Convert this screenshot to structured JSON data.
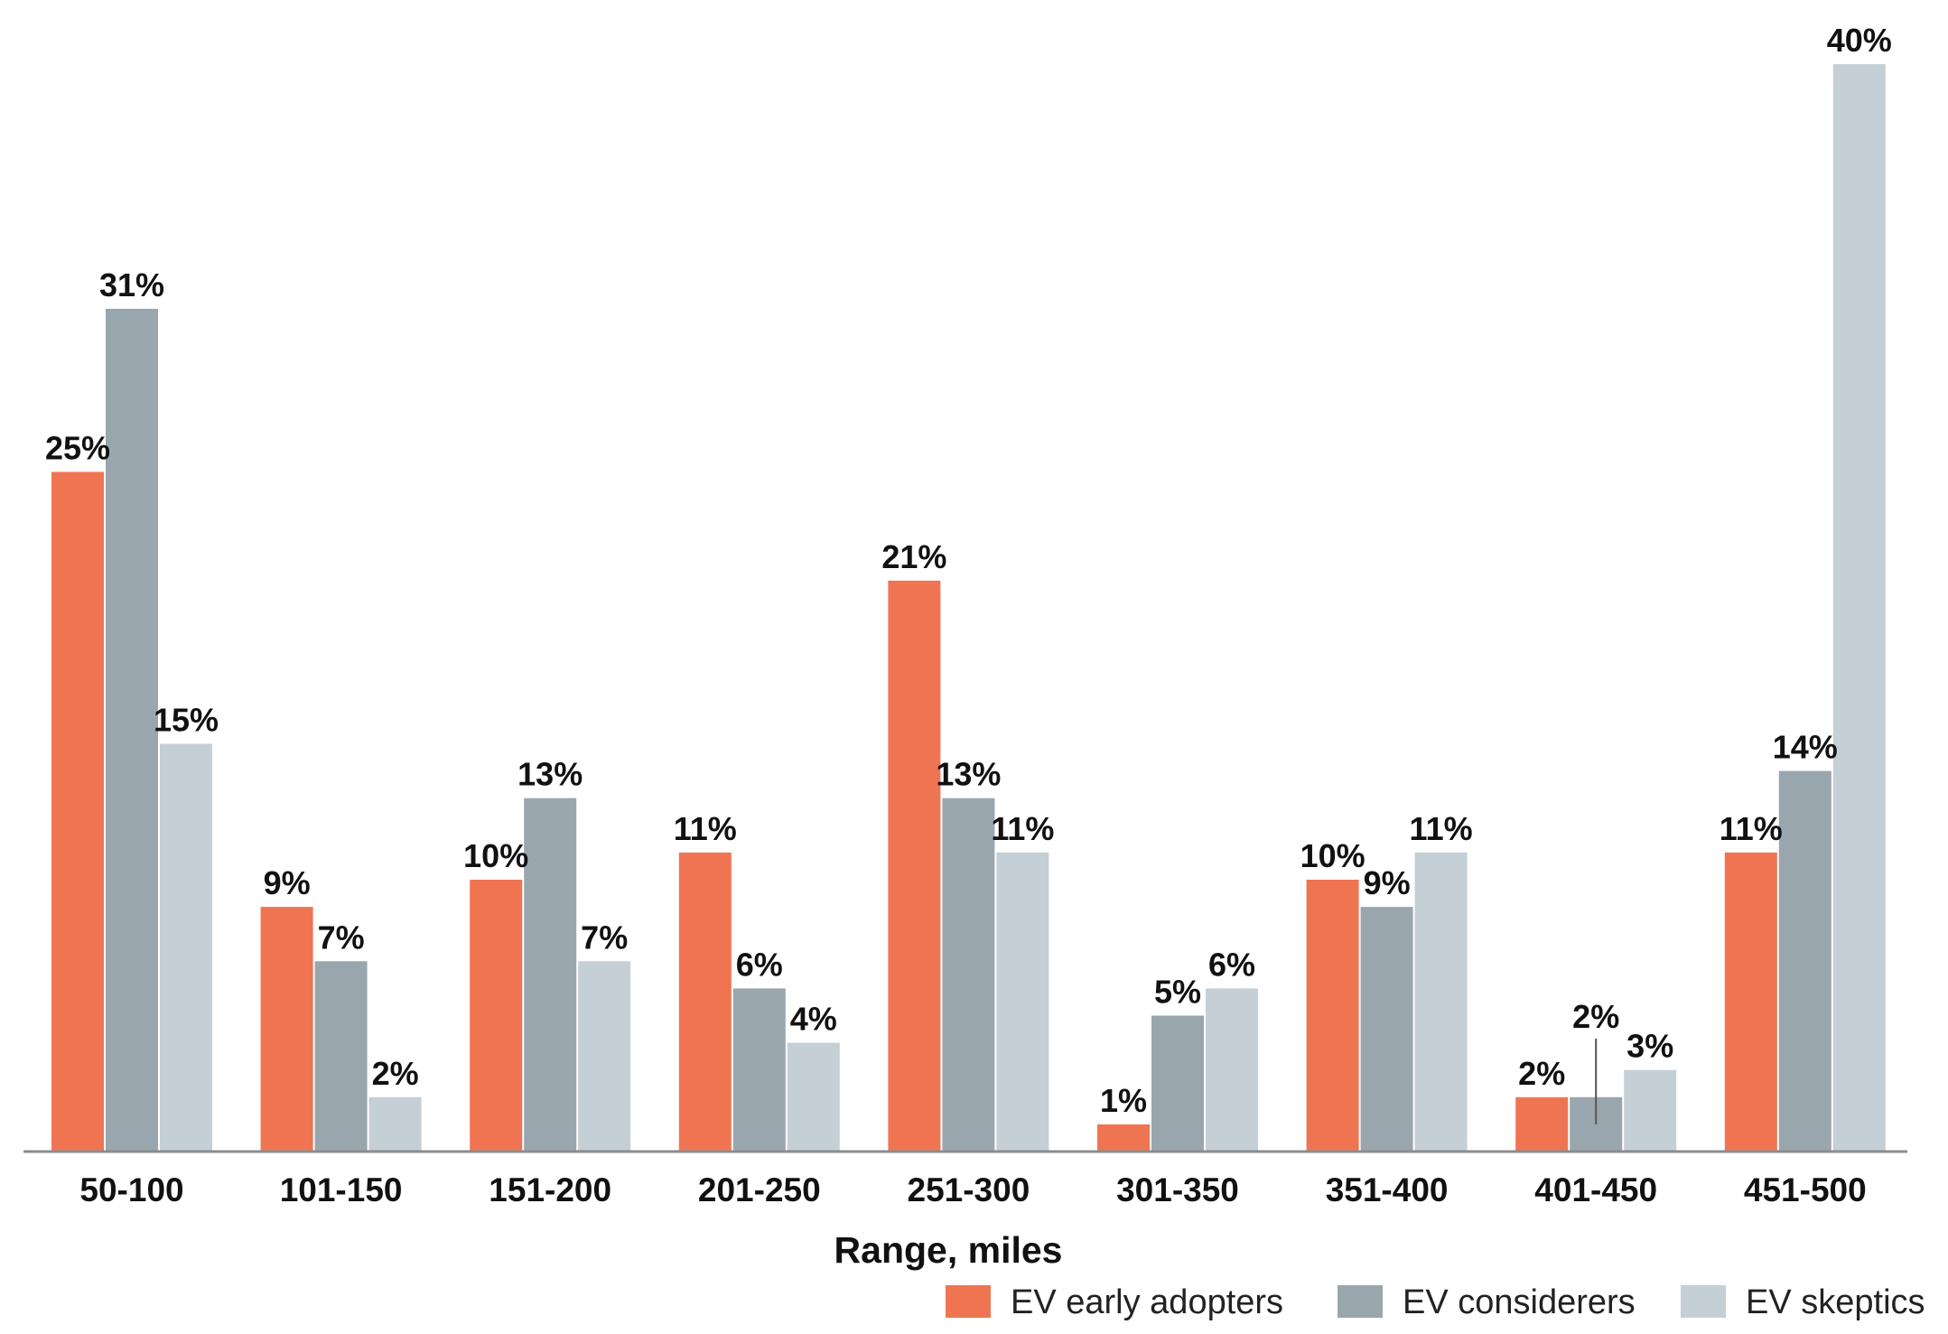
{
  "chart_data": {
    "type": "bar",
    "categories": [
      "50-100",
      "101-150",
      "151-200",
      "201-250",
      "251-300",
      "301-350",
      "351-400",
      "401-450",
      "451-500"
    ],
    "series": [
      {
        "name": "EV early adopters",
        "color": "#ef7552",
        "values": [
          25,
          9,
          10,
          11,
          21,
          1,
          10,
          2,
          11
        ],
        "labels": [
          "25%",
          "9%",
          "10%",
          "11%",
          "21%",
          "1%",
          "10%",
          "2%",
          "11%"
        ]
      },
      {
        "name": "EV considerers",
        "color": "#9aa6ae",
        "values": [
          31,
          7,
          13,
          6,
          13,
          5,
          9,
          2,
          14
        ],
        "labels": [
          "31%",
          "7%",
          "13%",
          "6%",
          "13%",
          "5%",
          "9%",
          "2%",
          "14%"
        ]
      },
      {
        "name": "EV skeptics",
        "color": "#c4cfd6",
        "values": [
          15,
          2,
          7,
          4,
          11,
          6,
          11,
          3,
          40
        ],
        "labels": [
          "15%",
          "2%",
          "7%",
          "4%",
          "11%",
          "6%",
          "11%",
          "3%",
          "40%"
        ]
      }
    ],
    "title": "",
    "xlabel": "Range, miles",
    "ylabel": "",
    "ylim": [
      0,
      40
    ],
    "grid": false,
    "legend": "bottom-right"
  }
}
